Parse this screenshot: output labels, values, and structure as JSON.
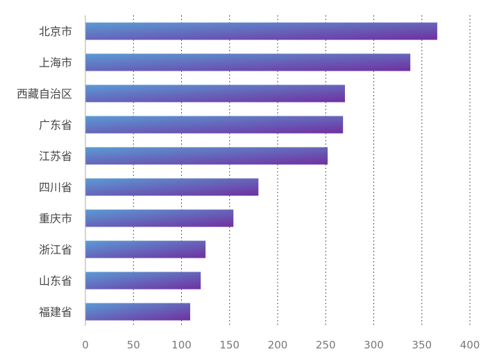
{
  "chart_data": {
    "type": "bar",
    "orientation": "horizontal",
    "categories": [
      "北京市",
      "上海市",
      "西藏自治区",
      "广东省",
      "江苏省",
      "四川省",
      "重庆市",
      "浙江省",
      "山东省",
      "福建省"
    ],
    "values": [
      366,
      338,
      270,
      268,
      252,
      180,
      154,
      125,
      120,
      109
    ],
    "title": "",
    "xlabel": "",
    "ylabel": "",
    "xlim": [
      0,
      400
    ],
    "xticks": [
      "0",
      "50",
      "100",
      "150",
      "200",
      "250",
      "300",
      "350",
      "400"
    ],
    "grid": true,
    "legend": "none",
    "colors": {
      "bar_start": "#5b9bd5",
      "bar_end": "#7030a0",
      "grid": "#555555",
      "axis": "#aaaaaa"
    }
  }
}
